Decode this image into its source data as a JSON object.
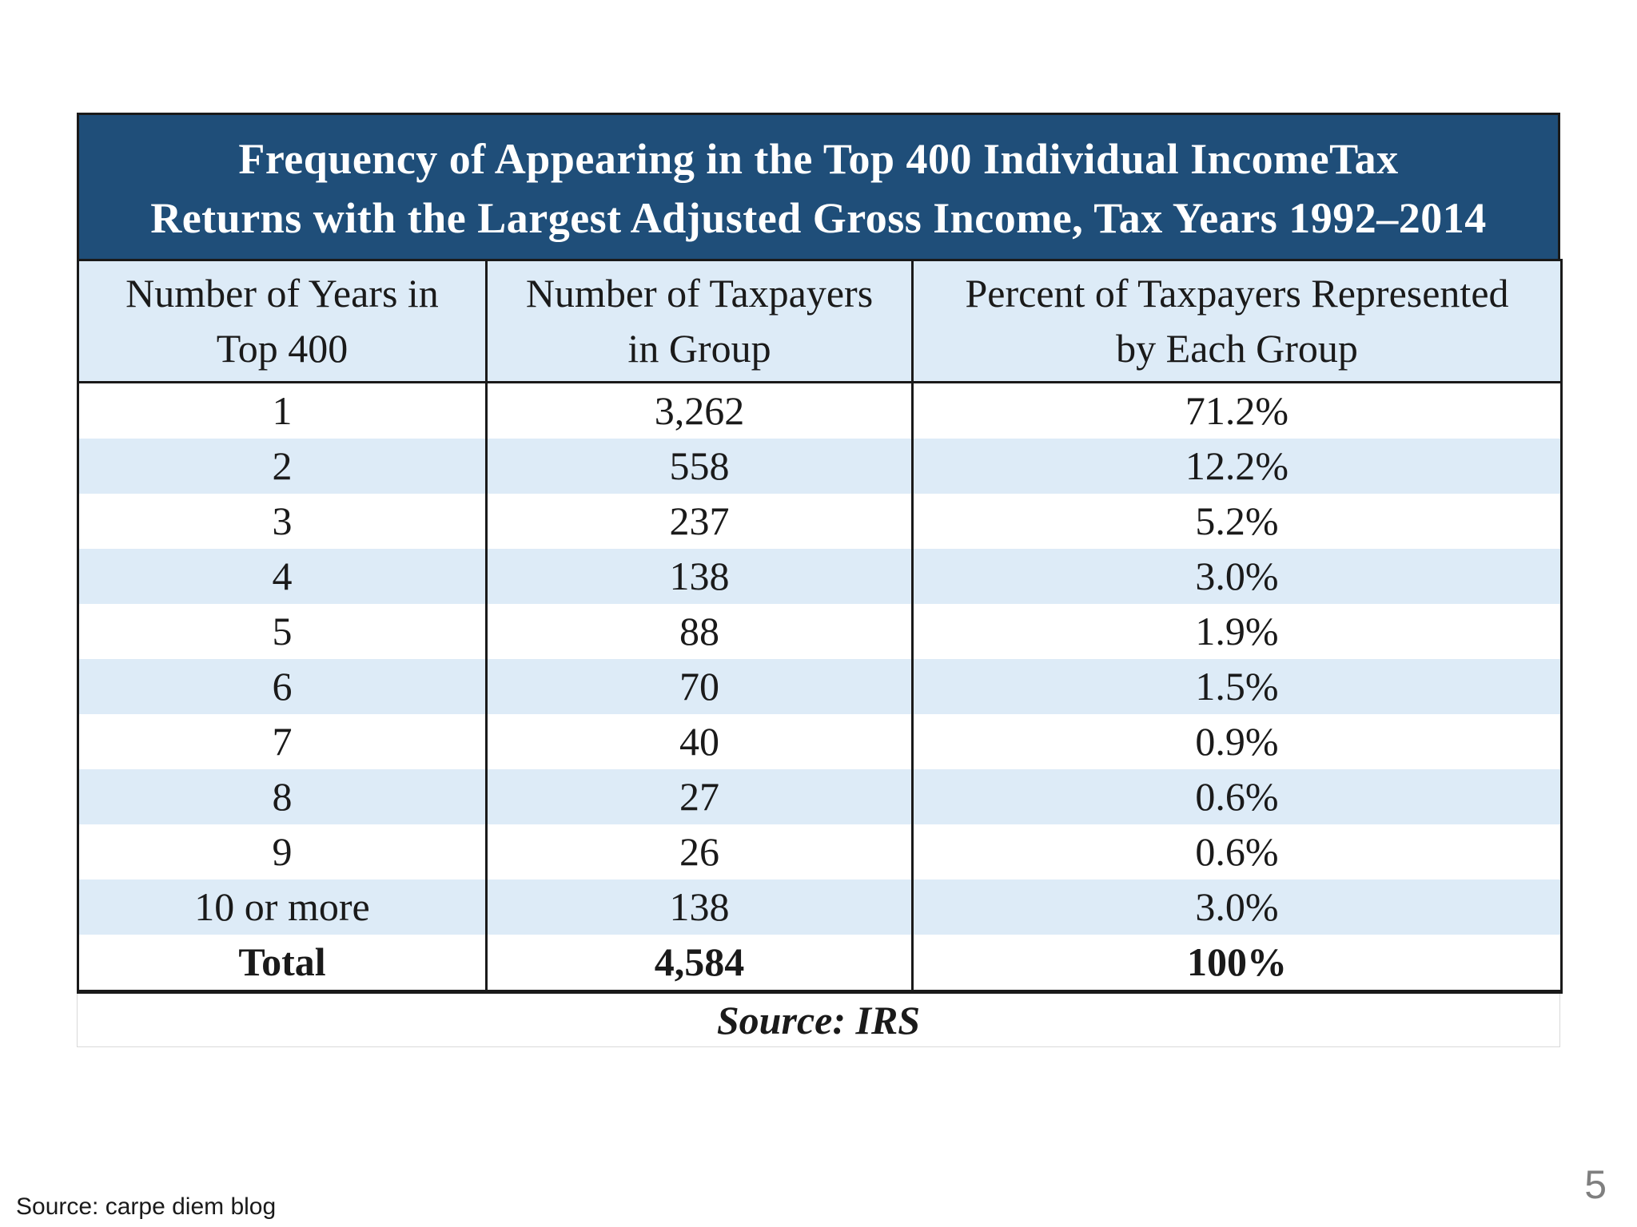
{
  "chart_data": {
    "type": "table",
    "title": "Frequency of Appearing in the Top 400 Individual IncomeTax Returns with the Largest Adjusted Gross Income, Tax Years 1992–2014",
    "title_line1": "Frequency of Appearing in the Top 400 Individual IncomeTax",
    "title_line2": "Returns with the Largest Adjusted Gross Income, Tax Years 1992–2014",
    "columns": [
      {
        "line1": "Number of Years in",
        "line2": "Top 400"
      },
      {
        "line1": "Number of Taxpayers",
        "line2": "in Group"
      },
      {
        "line1": "Percent of Taxpayers Represented",
        "line2": "by Each Group"
      }
    ],
    "rows": [
      [
        "1",
        "3,262",
        "71.2%"
      ],
      [
        "2",
        "558",
        "12.2%"
      ],
      [
        "3",
        "237",
        "5.2%"
      ],
      [
        "4",
        "138",
        "3.0%"
      ],
      [
        "5",
        "88",
        "1.9%"
      ],
      [
        "6",
        "70",
        "1.5%"
      ],
      [
        "7",
        "40",
        "0.9%"
      ],
      [
        "8",
        "27",
        "0.6%"
      ],
      [
        "9",
        "26",
        "0.6%"
      ],
      [
        "10 or more",
        "138",
        "3.0%"
      ]
    ],
    "total": [
      "Total",
      "4,584",
      "100%"
    ],
    "source": "Source: IRS"
  },
  "footer": {
    "source": "Source: carpe diem blog",
    "page_number": "5"
  },
  "colors": {
    "title_background": "#1f4e79",
    "header_background": "#ddebf7",
    "stripe": "#ddebf7",
    "text": "#1a1a1a",
    "page_number": "#7f7f7f"
  }
}
